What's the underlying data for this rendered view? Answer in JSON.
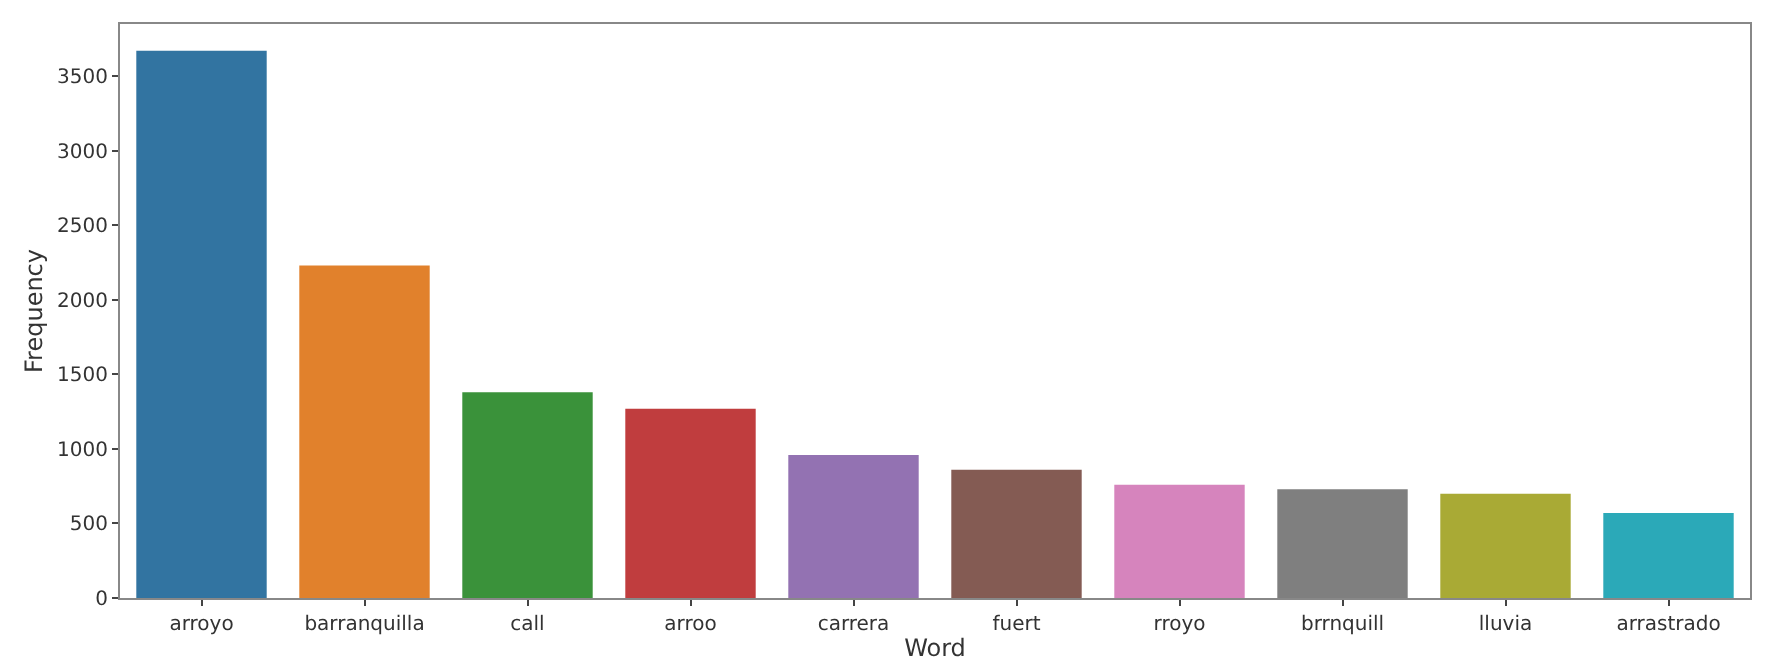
{
  "chart_data": {
    "type": "bar",
    "xlabel": "Word",
    "ylabel": "Frequency",
    "categories": [
      "arroyo",
      "barranquilla",
      "call",
      "arroo",
      "carrera",
      "fuert",
      "rroyo",
      "brrnquill",
      "lluvia",
      "arrastrado"
    ],
    "values": [
      3670,
      2230,
      1380,
      1270,
      960,
      860,
      760,
      730,
      700,
      570
    ],
    "colors": [
      "#3274a1",
      "#e1812c",
      "#3a923a",
      "#c03d3e",
      "#9372b2",
      "#845b53",
      "#d684bd",
      "#7f7f7f",
      "#a9aa35",
      "#2ba9b8"
    ],
    "ylim": [
      0,
      3850
    ],
    "yticks": [
      0,
      500,
      1000,
      1500,
      2000,
      2500,
      3000,
      3500
    ]
  }
}
